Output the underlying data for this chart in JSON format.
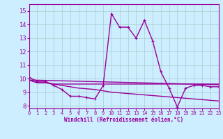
{
  "xlabel": "Windchill (Refroidissement éolien,°C)",
  "bg_color": "#cceeff",
  "line_color": "#990099",
  "grid_color": "#aacccc",
  "x_ticks": [
    0,
    1,
    2,
    3,
    4,
    5,
    6,
    7,
    8,
    9,
    10,
    11,
    12,
    13,
    14,
    15,
    16,
    17,
    18,
    19,
    20,
    21,
    22,
    23
  ],
  "y_ticks": [
    8,
    9,
    10,
    11,
    12,
    13,
    14,
    15
  ],
  "ylim": [
    7.8,
    15.5
  ],
  "xlim": [
    0,
    23
  ],
  "series": [
    {
      "x": [
        0,
        1,
        2,
        3,
        4,
        5,
        6,
        7,
        8,
        9,
        10,
        11,
        12,
        13,
        14,
        15,
        16,
        17,
        18,
        19,
        20,
        21,
        22,
        23
      ],
      "y": [
        10.1,
        9.8,
        9.8,
        9.5,
        9.2,
        8.7,
        8.7,
        8.6,
        8.5,
        9.5,
        14.8,
        13.8,
        13.8,
        13.0,
        14.3,
        12.8,
        10.5,
        9.3,
        7.9,
        9.3,
        9.5,
        9.5,
        9.4,
        9.4
      ],
      "marker": true,
      "linewidth": 1.0
    },
    {
      "x": [
        0,
        1,
        2,
        3,
        4,
        5,
        6,
        7,
        8,
        9,
        10,
        11,
        12,
        13,
        14,
        15,
        16,
        17,
        18,
        19,
        20,
        21,
        22,
        23
      ],
      "y": [
        9.9,
        9.7,
        9.7,
        9.6,
        9.6,
        9.6,
        9.6,
        9.6,
        9.6,
        9.6,
        9.6,
        9.6,
        9.6,
        9.6,
        9.6,
        9.6,
        9.6,
        9.6,
        9.6,
        9.6,
        9.6,
        9.6,
        9.6,
        9.6
      ],
      "marker": false,
      "linewidth": 1.0
    },
    {
      "x": [
        0,
        1,
        2,
        3,
        4,
        5,
        6,
        7,
        8,
        9,
        10,
        11,
        12,
        13,
        14,
        15,
        16,
        17,
        18,
        19,
        20,
        21,
        22,
        23
      ],
      "y": [
        9.9,
        9.7,
        9.7,
        9.6,
        9.5,
        9.4,
        9.3,
        9.25,
        9.2,
        9.1,
        9.0,
        8.95,
        8.9,
        8.85,
        8.8,
        8.75,
        8.7,
        8.65,
        8.6,
        8.55,
        8.5,
        8.45,
        8.4,
        8.35
      ],
      "marker": false,
      "linewidth": 1.0
    },
    {
      "x": [
        0,
        23
      ],
      "y": [
        9.9,
        9.55
      ],
      "marker": false,
      "linewidth": 1.0
    }
  ]
}
